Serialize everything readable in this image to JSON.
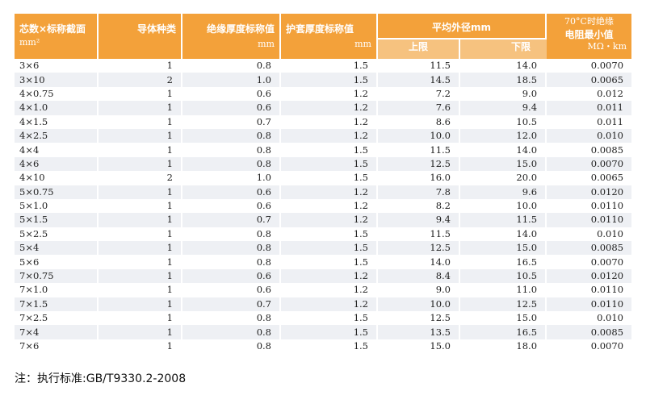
{
  "header": {
    "core": {
      "label": "芯数×标称截面",
      "unit": "mm²"
    },
    "conductor": {
      "label": "导体种类"
    },
    "insulation": {
      "label": "绝缘厚度标称值",
      "unit": "mm"
    },
    "sheath": {
      "label": "护套厚度标称值",
      "unit": "mm"
    },
    "diameter": {
      "label": "平均外径mm",
      "upper": "上限",
      "lower": "下限"
    },
    "resistance": {
      "line1": "70°C时绝缘",
      "line2": "电阻最小值",
      "unit": "MΩ・km"
    }
  },
  "rows": [
    [
      "3×6",
      "1",
      "0.8",
      "1.5",
      "11.5",
      "14.0",
      "0.0070"
    ],
    [
      "3×10",
      "2",
      "1.0",
      "1.5",
      "14.5",
      "18.5",
      "0.0065"
    ],
    [
      "4×0.75",
      "1",
      "0.6",
      "1.2",
      "7.2",
      "9.0",
      "0.012"
    ],
    [
      "4×1.0",
      "1",
      "0.6",
      "1.2",
      "7.6",
      "9.4",
      "0.011"
    ],
    [
      "4×1.5",
      "1",
      "0.7",
      "1.2",
      "8.6",
      "10.5",
      "0.011"
    ],
    [
      "4×2.5",
      "1",
      "0.8",
      "1.2",
      "10.0",
      "12.0",
      "0.010"
    ],
    [
      "4×4",
      "1",
      "0.8",
      "1.5",
      "11.5",
      "14.0",
      "0.0085"
    ],
    [
      "4×6",
      "1",
      "0.8",
      "1.5",
      "12.5",
      "15.0",
      "0.0070"
    ],
    [
      "4×10",
      "2",
      "1.0",
      "1.5",
      "16.0",
      "20.0",
      "0.0065"
    ],
    [
      "5×0.75",
      "1",
      "0.6",
      "1.2",
      "7.8",
      "9.6",
      "0.0120"
    ],
    [
      "5×1.0",
      "1",
      "0.6",
      "1.2",
      "8.2",
      "10.0",
      "0.0110"
    ],
    [
      "5×1.5",
      "1",
      "0.7",
      "1.2",
      "9.4",
      "11.5",
      "0.0110"
    ],
    [
      "5×2.5",
      "1",
      "0.8",
      "1.5",
      "11.5",
      "14.0",
      "0.010"
    ],
    [
      "5×4",
      "1",
      "0.8",
      "1.5",
      "12.5",
      "15.0",
      "0.0085"
    ],
    [
      "5×6",
      "1",
      "0.8",
      "1.5",
      "14.0",
      "16.5",
      "0.0070"
    ],
    [
      "7×0.75",
      "1",
      "0.6",
      "1.2",
      "8.4",
      "10.5",
      "0.0120"
    ],
    [
      "7×1.0",
      "1",
      "0.6",
      "1.2",
      "9.0",
      "11.0",
      "0.0110"
    ],
    [
      "7×1.5",
      "1",
      "0.7",
      "1.2",
      "10.0",
      "12.5",
      "0.0110"
    ],
    [
      "7×2.5",
      "1",
      "0.8",
      "1.5",
      "12.5",
      "15.0",
      "0.010"
    ],
    [
      "7×4",
      "1",
      "0.8",
      "1.5",
      "13.5",
      "16.5",
      "0.0085"
    ],
    [
      "7×6",
      "1",
      "0.8",
      "1.5",
      "15.0",
      "18.0",
      "0.0070"
    ]
  ],
  "footnote": "注：执行标准:GB/T9330.2-2008",
  "colors": {
    "header": "#f3a13a",
    "subheader": "#f6c27f",
    "stripe": "#eef0f4"
  }
}
